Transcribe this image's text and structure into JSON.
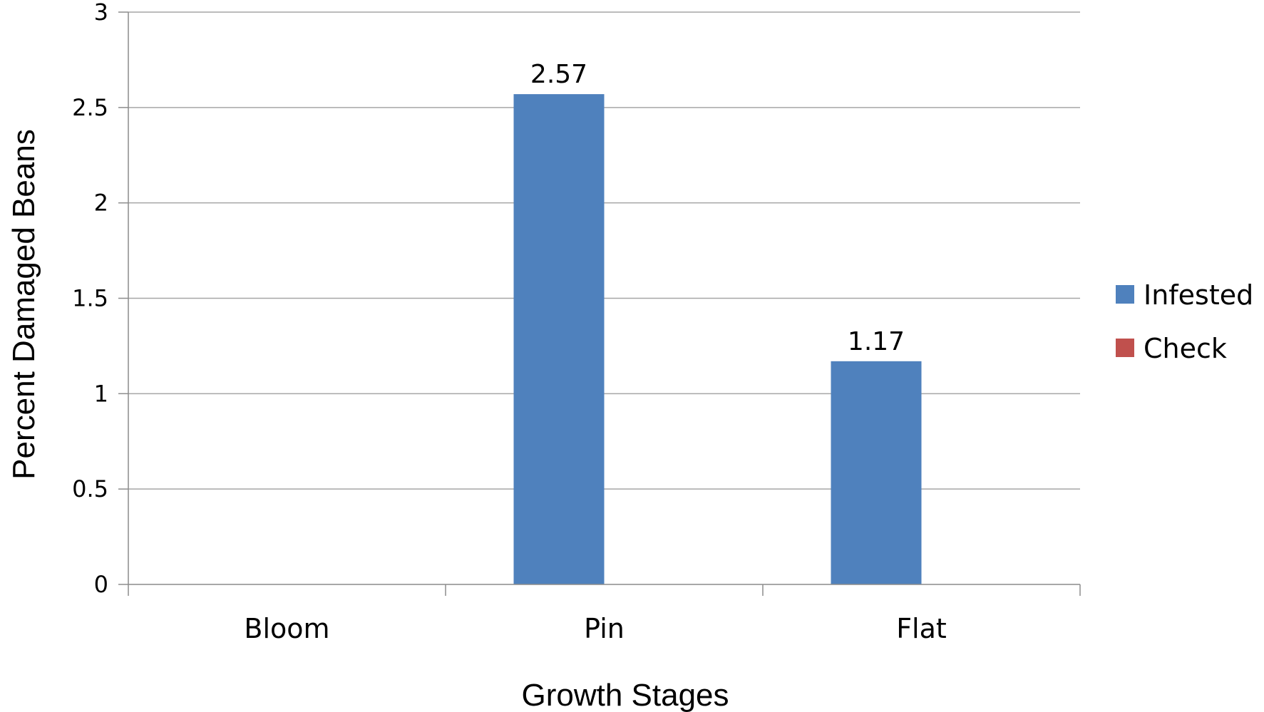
{
  "chart_data": {
    "type": "bar",
    "categories": [
      "Bloom",
      "Pin",
      "Flat"
    ],
    "series": [
      {
        "name": "Infested",
        "values": [
          0,
          2.57,
          1.17
        ],
        "color": "#4f81bd"
      },
      {
        "name": "Check",
        "values": [
          0,
          0,
          0
        ],
        "color": "#c0504d"
      }
    ],
    "data_labels": [
      "",
      "2.57",
      "1.17"
    ],
    "xlabel": "Growth Stages",
    "ylabel": "Percent  Damaged Beans",
    "ylim": [
      0,
      3
    ],
    "yticks": [
      "0",
      "0.5",
      "1",
      "1.5",
      "2",
      "2.5",
      "3"
    ],
    "grid": true,
    "legend_position": "right"
  }
}
